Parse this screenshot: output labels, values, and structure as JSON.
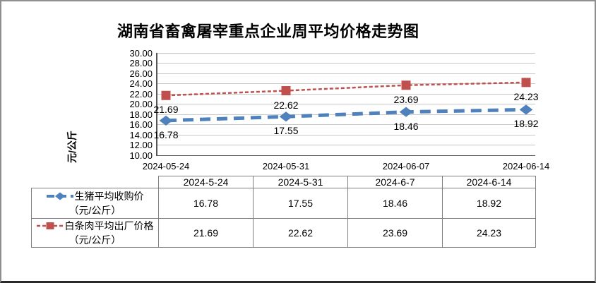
{
  "chart_data": {
    "type": "line",
    "title": "湖南省畜禽屠宰重点企业周平均价格走势图",
    "ylabel": "元/公斤",
    "ylim": [
      10,
      30
    ],
    "ytick_step": 2,
    "ytick_format_decimals": 2,
    "grid": true,
    "legend_position": "table-bottom",
    "categories": [
      "2024-05-24",
      "2024-05-31",
      "2024-06-07",
      "2024-06-14"
    ],
    "series": [
      {
        "name": "生猪平均收购价",
        "unit": "（元/公斤）",
        "values": [
          16.78,
          17.55,
          18.46,
          18.92
        ],
        "color": "#4F81BD",
        "marker": "diamond",
        "line_style": "long-dash"
      },
      {
        "name": "白条肉平均出厂价格",
        "unit": "（元/公斤）",
        "values": [
          21.69,
          22.62,
          23.69,
          24.23
        ],
        "color": "#C0504D",
        "marker": "square",
        "line_style": "short-dash"
      }
    ]
  },
  "table": {
    "columns": [
      "2024-5-24",
      "2024-5-31",
      "2024-6-7",
      "2024-6-14"
    ]
  },
  "colors": {
    "gridline": "#c8c8c8",
    "axis": "#555555",
    "table_border": "#7f7f7f",
    "background": "#ffffff"
  }
}
